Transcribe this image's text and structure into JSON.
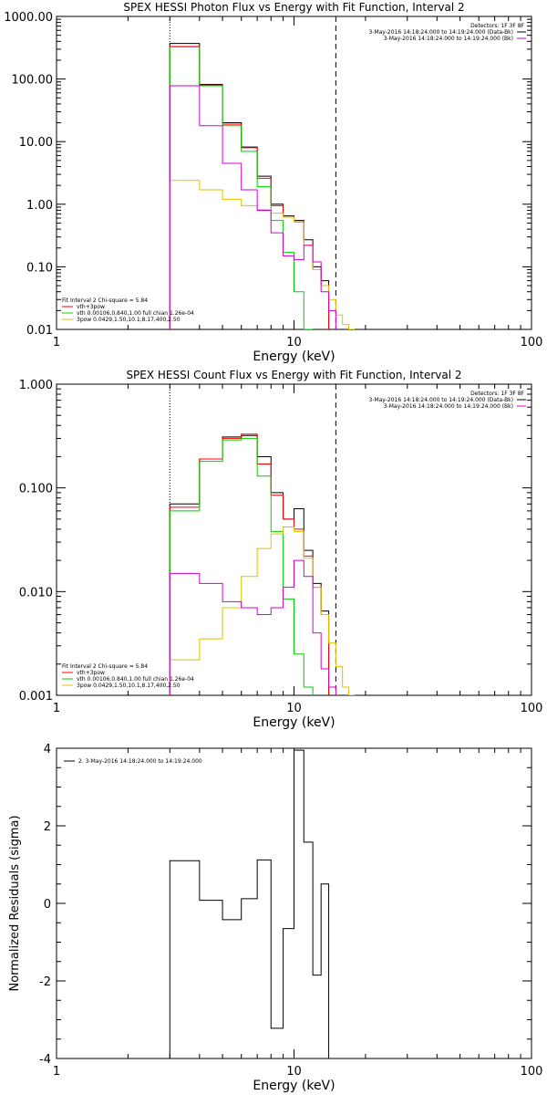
{
  "chart_data": [
    {
      "type": "line",
      "title": "SPEX HESSI Photon Flux vs Energy with Fit Function, Interval 2",
      "xlabel": "Energy (keV)",
      "ylabel": "",
      "xscale": "log",
      "yscale": "log",
      "xlim": [
        1,
        100
      ],
      "ylim": [
        0.01,
        1000
      ],
      "yticklabels": [
        "0.01",
        "0.10",
        "1.00",
        "10.00",
        "100.00",
        "1000.00"
      ],
      "xticklabels": [
        "1",
        "10",
        "100"
      ],
      "vlines": {
        "dotted": 3,
        "dashed": 15
      },
      "legend_top": {
        "placement": "top-right",
        "header": "Detectors: 1F 3F 8F",
        "entries": [
          {
            "text": "3-May-2016 14:18:24.000 to 14:19:24.000 (Data-Bk)",
            "color": "#000000"
          },
          {
            "text": "3-May-2016 14:18:24.000 to 14:19:24.000 (Bk)",
            "color": "#d100d1"
          }
        ]
      },
      "legend_bottom": {
        "placement": "bottom-left",
        "header": "Fit Interval 2   Chi-square = 5.84",
        "entries": [
          {
            "text": "vth+3pow",
            "color": "#ff0000"
          },
          {
            "text": "vth 0.00106,0.840,1.00  full chian 1.26e-04",
            "color": "#00d000"
          },
          {
            "text": "3pow 0.0429,1.50,10.1,8.17,400,2.50",
            "color": "#e0c000"
          }
        ]
      },
      "bin_edges": [
        3,
        4,
        5,
        6,
        7,
        8,
        9,
        10,
        11,
        12,
        13,
        14,
        15,
        16,
        17,
        18
      ],
      "series": [
        {
          "name": "Data-Bk",
          "color": "#000000",
          "values": [
            370,
            82,
            20,
            8.2,
            2.8,
            1.0,
            0.65,
            0.55,
            0.27,
            0.1,
            0.06
          ]
        },
        {
          "name": "vth+3pow",
          "color": "#ff0000",
          "values": [
            330,
            80,
            19,
            8.0,
            2.6,
            0.95,
            0.62,
            0.52,
            0.22,
            0.09,
            0.05
          ]
        },
        {
          "name": "vth",
          "color": "#00d000",
          "values": [
            325,
            78,
            18,
            7.0,
            1.9,
            0.55,
            0.17,
            0.04,
            0.01
          ]
        },
        {
          "name": "3pow",
          "color": "#e0c000",
          "values": [
            2.4,
            1.7,
            1.2,
            0.95,
            0.82,
            0.72,
            0.62,
            0.52,
            0.22,
            0.09,
            0.05,
            0.03,
            0.017,
            0.012,
            0.01
          ]
        },
        {
          "name": "Bk",
          "color": "#d100d1",
          "values": [
            78,
            18,
            4.5,
            1.7,
            0.8,
            0.35,
            0.15,
            0.13,
            0.22,
            0.12,
            0.04,
            0.02
          ]
        }
      ]
    },
    {
      "type": "line",
      "title": "SPEX HESSI Count Flux vs Energy with Fit Function, Interval 2",
      "xlabel": "Energy (keV)",
      "ylabel": "",
      "xscale": "log",
      "yscale": "log",
      "xlim": [
        1,
        100
      ],
      "ylim": [
        0.001,
        1
      ],
      "yticklabels": [
        "0.001",
        "0.010",
        "0.100",
        "1.000"
      ],
      "xticklabels": [
        "1",
        "10",
        "100"
      ],
      "vlines": {
        "dotted": 3,
        "dashed": 15
      },
      "legend_top": {
        "placement": "top-right",
        "header": "Detectors: 1F 3F 8F",
        "entries": [
          {
            "text": "3-May-2016 14:18:24.000 to 14:19:24.000 (Data-Bk)",
            "color": "#000000"
          },
          {
            "text": "3-May-2016 14:18:24.000 to 14:19:24.000 (Bk)",
            "color": "#d100d1"
          }
        ]
      },
      "legend_bottom": {
        "placement": "bottom-left",
        "header": "Fit Interval 2   Chi-square = 5.84",
        "entries": [
          {
            "text": "vth+3pow",
            "color": "#ff0000"
          },
          {
            "text": "vth 0.00106,0.840,1.00  full chian 1.26e-04",
            "color": "#00d000"
          },
          {
            "text": "3pow 0.0429,1.50,10.1,8.17,400,2.50",
            "color": "#e0c000"
          }
        ]
      },
      "bin_edges": [
        3,
        4,
        5,
        6,
        7,
        8,
        9,
        10,
        11,
        12,
        13,
        14,
        15,
        16,
        17,
        18
      ],
      "series": [
        {
          "name": "Data-Bk",
          "color": "#000000",
          "values": [
            0.07,
            0.19,
            0.31,
            0.32,
            0.2,
            0.09,
            0.05,
            0.063,
            0.025,
            0.012,
            0.0065
          ]
        },
        {
          "name": "vth+3pow",
          "color": "#ff0000",
          "values": [
            0.065,
            0.19,
            0.3,
            0.33,
            0.17,
            0.085,
            0.05,
            0.04,
            0.022,
            0.011,
            0.006
          ]
        },
        {
          "name": "vth",
          "color": "#00d000",
          "values": [
            0.06,
            0.18,
            0.29,
            0.3,
            0.13,
            0.038,
            0.0085,
            0.0025,
            0.0012
          ]
        },
        {
          "name": "3pow",
          "color": "#e0c000",
          "values": [
            0.0022,
            0.0035,
            0.007,
            0.014,
            0.026,
            0.036,
            0.042,
            0.038,
            0.021,
            0.011,
            0.006,
            0.0032,
            0.0019,
            0.0012,
            0.0009
          ]
        },
        {
          "name": "Bk",
          "color": "#d100d1",
          "values": [
            0.015,
            0.012,
            0.008,
            0.007,
            0.006,
            0.007,
            0.011,
            0.02,
            0.014,
            0.004,
            0.0018,
            0.0012
          ]
        }
      ]
    },
    {
      "type": "line",
      "title": "",
      "xlabel": "Energy (keV)",
      "ylabel": "Normalized Residuals (sigma)",
      "xscale": "log",
      "yscale": "linear",
      "xlim": [
        1,
        100
      ],
      "ylim": [
        -4,
        4
      ],
      "yticklabels": [
        "-4",
        "-2",
        "0",
        "2",
        "4"
      ],
      "xticklabels": [
        "1",
        "10",
        "100"
      ],
      "legend": {
        "placement": "top-left",
        "entries": [
          {
            "text": "2. 3-May-2016 14:18:24.000 to 14:19:24.000",
            "color": "#000000"
          }
        ]
      },
      "bin_edges": [
        3,
        4,
        5,
        6,
        7,
        8,
        9,
        10,
        11,
        12,
        13,
        14,
        15
      ],
      "series": [
        {
          "name": "",
          "color": "#000000",
          "values": [
            1.1,
            0.08,
            -0.42,
            0.12,
            1.12,
            -3.22,
            -0.65,
            3.95,
            1.58,
            -1.85,
            0.5
          ]
        }
      ]
    }
  ]
}
